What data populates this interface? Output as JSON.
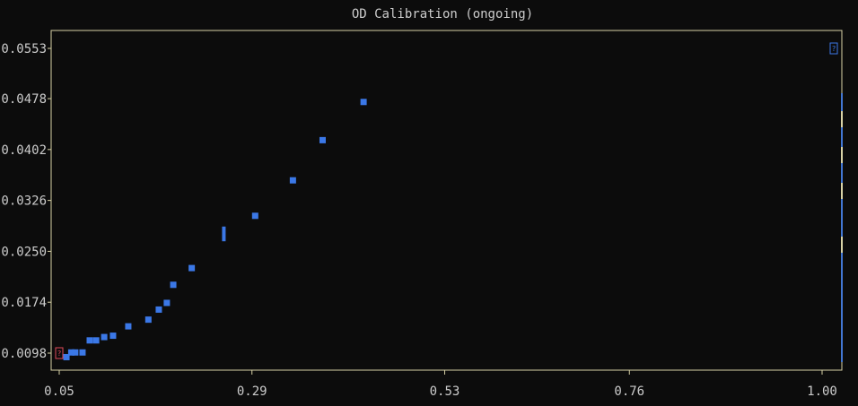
{
  "chart_data": {
    "type": "scatter",
    "title": "OD Calibration (ongoing)",
    "xlabel": "",
    "ylabel": "",
    "xlim": [
      0.05,
      1.01
    ],
    "ylim": [
      0.0076,
      0.0576
    ],
    "x_ticks": [
      "0.05",
      "0.29",
      "0.53",
      "0.76",
      "1.00"
    ],
    "y_ticks": [
      "0.0098",
      "0.0174",
      "0.0250",
      "0.0326",
      "0.0402",
      "0.0478",
      "0.0553"
    ],
    "grid": false,
    "colors": {
      "point": "#3b78e7",
      "frame": "#d8d2a6",
      "marker_red": "#e04a5a",
      "background": "#0c0c0c"
    },
    "series": [
      {
        "points": [
          [
            0.059,
            0.0092
          ],
          [
            0.065,
            0.0099
          ],
          [
            0.07,
            0.0099
          ],
          [
            0.079,
            0.0099
          ],
          [
            0.088,
            0.0117
          ],
          [
            0.096,
            0.0117
          ],
          [
            0.106,
            0.0122
          ],
          [
            0.117,
            0.0124
          ],
          [
            0.136,
            0.0138
          ],
          [
            0.161,
            0.0148
          ],
          [
            0.174,
            0.0163
          ],
          [
            0.184,
            0.0173
          ],
          [
            0.192,
            0.02
          ],
          [
            0.215,
            0.0225
          ],
          [
            0.294,
            0.0303
          ],
          [
            0.341,
            0.0356
          ],
          [
            0.378,
            0.0416
          ],
          [
            0.429,
            0.0473
          ]
        ]
      }
    ],
    "errorbar_point": {
      "x": 0.255,
      "y_low": 0.0265,
      "y_high": 0.0287
    },
    "right_edge_markers": [
      {
        "y": 0.0553,
        "symbol": "?"
      }
    ],
    "left_edge_markers": [
      {
        "y": 0.0098,
        "symbol": "?"
      }
    ]
  }
}
